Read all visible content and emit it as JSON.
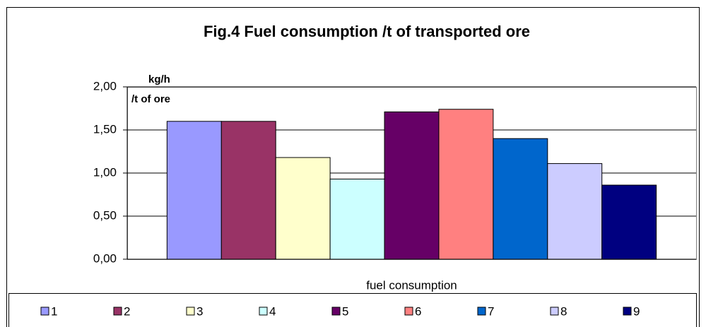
{
  "chart_data": {
    "type": "bar",
    "title": "Fig.4 Fuel consumption /t of transported ore",
    "ylabel": [
      "kg/h",
      "/t of ore"
    ],
    "categories": [
      "fuel consumption"
    ],
    "series": [
      {
        "name": "1",
        "color": "#9999ff",
        "values": [
          1.6
        ]
      },
      {
        "name": "2",
        "color": "#993366",
        "values": [
          1.6
        ]
      },
      {
        "name": "3",
        "color": "#ffffcc",
        "values": [
          1.18
        ]
      },
      {
        "name": "4",
        "color": "#ccffff",
        "values": [
          0.93
        ]
      },
      {
        "name": "5",
        "color": "#660066",
        "values": [
          1.71
        ]
      },
      {
        "name": "6",
        "color": "#ff8080",
        "values": [
          1.74
        ]
      },
      {
        "name": "7",
        "color": "#0066cc",
        "values": [
          1.4
        ]
      },
      {
        "name": "8",
        "color": "#ccccff",
        "values": [
          1.11
        ]
      },
      {
        "name": "9",
        "color": "#000080",
        "values": [
          0.86
        ]
      }
    ],
    "ylim": [
      0,
      2
    ],
    "yticks": [
      {
        "value": 0,
        "label": "0,00"
      },
      {
        "value": 0.5,
        "label": "0,50"
      },
      {
        "value": 1,
        "label": "1,00"
      },
      {
        "value": 1.5,
        "label": "1,50"
      },
      {
        "value": 2,
        "label": "2,00"
      }
    ],
    "grid": true,
    "legend": "bottom"
  }
}
